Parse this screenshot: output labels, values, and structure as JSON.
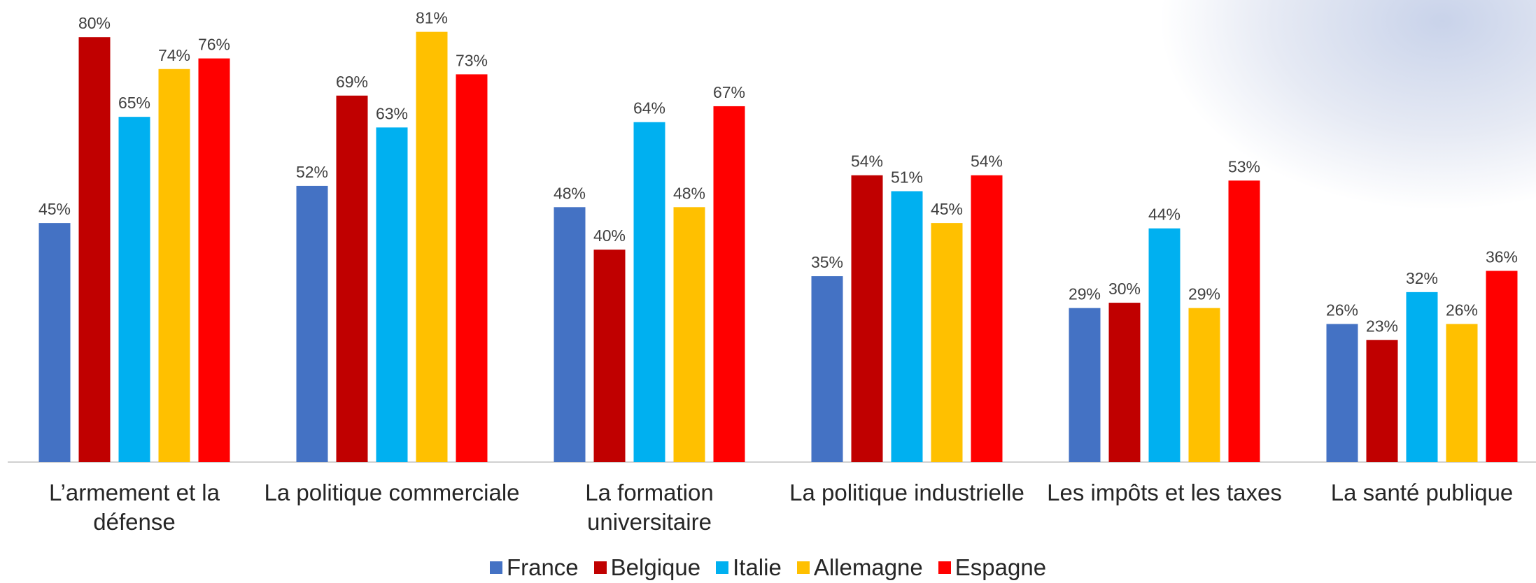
{
  "chart_data": {
    "type": "bar",
    "categories": [
      "L’armement et la défense",
      "La politique commerciale",
      "La formation universitaire",
      "La politique industrielle",
      "Les impôts et les taxes",
      "La santé publique"
    ],
    "series": [
      {
        "name": "France",
        "color": "#4472c4",
        "values": [
          45,
          52,
          48,
          35,
          29,
          26
        ],
        "value_labels": [
          "45%",
          "52%",
          "48%",
          "35%",
          "29%",
          "26%"
        ]
      },
      {
        "name": "Belgique",
        "color": "#c00000",
        "values": [
          80,
          69,
          40,
          54,
          30,
          23
        ],
        "value_labels": [
          "80%",
          "69%",
          "40%",
          "54%",
          "30%",
          "23%"
        ]
      },
      {
        "name": "Italie",
        "color": "#00b0f0",
        "values": [
          65,
          63,
          64,
          51,
          44,
          32
        ],
        "value_labels": [
          "65%",
          "63%",
          "64%",
          "51%",
          "44%",
          "32%"
        ]
      },
      {
        "name": "Allemagne",
        "color": "#ffc000",
        "values": [
          74,
          81,
          48,
          45,
          29,
          26
        ],
        "value_labels": [
          "74%",
          "81%",
          "48%",
          "45%",
          "29%",
          "26%"
        ]
      },
      {
        "name": "Espagne",
        "color": "#ff0000",
        "values": [
          76,
          73,
          67,
          54,
          53,
          36
        ],
        "value_labels": [
          "76%",
          "73%",
          "67%",
          "54%",
          "53%",
          "36%"
        ]
      }
    ],
    "ylim": [
      0,
      87
    ],
    "legend": "bottom"
  }
}
